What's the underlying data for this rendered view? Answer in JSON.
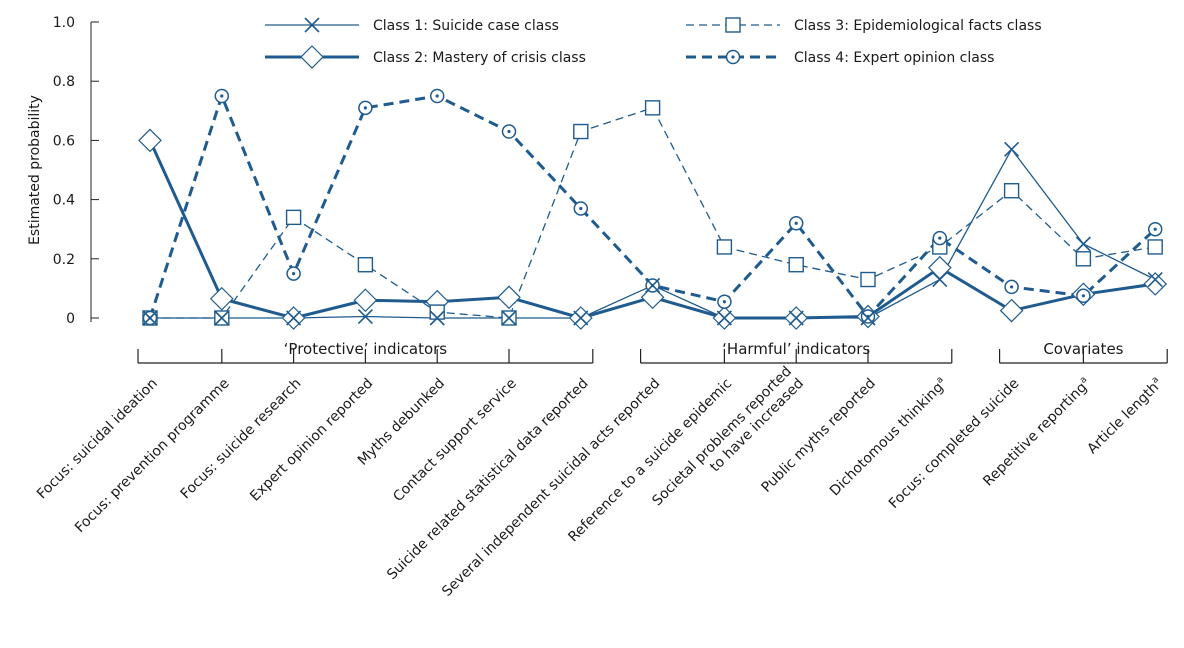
{
  "chart_data": {
    "type": "line",
    "ylabel": "Estimated probability",
    "ylim": [
      0,
      1.0
    ],
    "yticks": [
      "0",
      "0.2",
      "0.4",
      "0.6",
      "0.8",
      "1.0"
    ],
    "grid": false,
    "legend_position": "top",
    "color": "#1f5b8e",
    "categories": [
      {
        "text": "Focus: suicidal ideation",
        "sup": ""
      },
      {
        "text": "Focus: prevention programme",
        "sup": ""
      },
      {
        "text": "Focus: suicide research",
        "sup": ""
      },
      {
        "text": "Expert opinion reported",
        "sup": ""
      },
      {
        "text": "Myths debunked",
        "sup": ""
      },
      {
        "text": "Contact support service",
        "sup": ""
      },
      {
        "text": "Suicide related statistical data reported",
        "sup": ""
      },
      {
        "text": "Several independent suicidal acts reported",
        "sup": ""
      },
      {
        "text": "Reference to a suicide epidemic",
        "sup": ""
      },
      {
        "text": "Societal problems reported|to have increased",
        "sup": ""
      },
      {
        "text": "Public myths reported",
        "sup": ""
      },
      {
        "text": "Dichotomous thinking",
        "sup": "a"
      },
      {
        "text": "Focus: completed suicide",
        "sup": ""
      },
      {
        "text": "Repetitive reporting",
        "sup": "a"
      },
      {
        "text": "Article length",
        "sup": "a"
      }
    ],
    "groups": [
      {
        "label": "‘Protective’ indicators",
        "from": 0,
        "to": 6
      },
      {
        "label": "‘Harmful’ indicators",
        "from": 7,
        "to": 11
      },
      {
        "label": "Covariates",
        "from": 12,
        "to": 14
      }
    ],
    "series": [
      {
        "name": "Class 1: Suicide case class",
        "marker": "x",
        "line": "solid",
        "width": "thin",
        "values": [
          0.0,
          0.0,
          0.0,
          0.005,
          0.0,
          0.0,
          0.0,
          0.11,
          0.0,
          0.0,
          0.0,
          0.13,
          0.57,
          0.25,
          0.13
        ]
      },
      {
        "name": "Class 2: Mastery of crisis class",
        "marker": "diamond",
        "line": "solid",
        "width": "thick",
        "values": [
          0.6,
          0.065,
          0.0,
          0.06,
          0.055,
          0.07,
          0.0,
          0.07,
          0.0,
          0.0,
          0.005,
          0.17,
          0.025,
          0.08,
          0.115
        ]
      },
      {
        "name": "Class 3: Epidemiological facts class",
        "marker": "square",
        "line": "dashed",
        "width": "thin",
        "values": [
          0.0,
          0.0,
          0.34,
          0.18,
          0.02,
          0.0,
          0.63,
          0.71,
          0.24,
          0.18,
          0.13,
          0.24,
          0.43,
          0.2,
          0.24
        ]
      },
      {
        "name": "Class 4: Expert opinion class",
        "marker": "circle",
        "line": "dashed",
        "width": "thick",
        "values": [
          0.0,
          0.75,
          0.15,
          0.71,
          0.75,
          0.63,
          0.37,
          0.11,
          0.055,
          0.32,
          0.005,
          0.27,
          0.105,
          0.075,
          0.3
        ]
      }
    ]
  }
}
